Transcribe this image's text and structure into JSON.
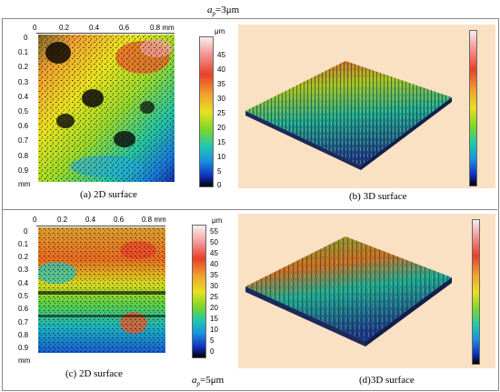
{
  "top_heading": "a",
  "top_heading_sub": "p",
  "top_heading_rest": "=3μm",
  "bottom_heading": "a",
  "bottom_heading_sub": "p",
  "bottom_heading_rest": "=5μm",
  "panels": {
    "a": {
      "caption": "(a) 2D surface",
      "x_ticks": [
        "0",
        "0.2",
        "0.4",
        "0.6",
        "0.8 mm"
      ],
      "y_ticks": [
        "0",
        "0.1",
        "0.2",
        "0.3",
        "0.4",
        "0.5",
        "0.6",
        "0.7",
        "0.8",
        "0.9"
      ],
      "y_unit": "mm"
    },
    "b": {
      "caption": "(b) 3D surface"
    },
    "c": {
      "caption": "(c) 2D surface",
      "x_ticks": [
        "0",
        "0.2",
        "0.4",
        "0.6",
        "0.8 mm"
      ],
      "y_ticks": [
        "0",
        "0.1",
        "0.2",
        "0.3",
        "0.4",
        "0.5",
        "0.6",
        "0.7",
        "0.8",
        "0.9"
      ],
      "y_unit": "mm"
    },
    "d": {
      "caption": "(d)3D surface"
    }
  },
  "colorbar_top": {
    "unit": "μm",
    "labels": [
      "45",
      "40",
      "35",
      "30",
      "25",
      "20",
      "15",
      "10",
      "5",
      "0"
    ]
  },
  "colorbar_bottom": {
    "unit": "μm",
    "labels": [
      "55",
      "50",
      "45",
      "40",
      "35",
      "30",
      "25",
      "20",
      "15",
      "10",
      "5",
      "0"
    ]
  },
  "colors": {
    "panel_bg": "#fbe1c4",
    "frame": "#888888"
  }
}
